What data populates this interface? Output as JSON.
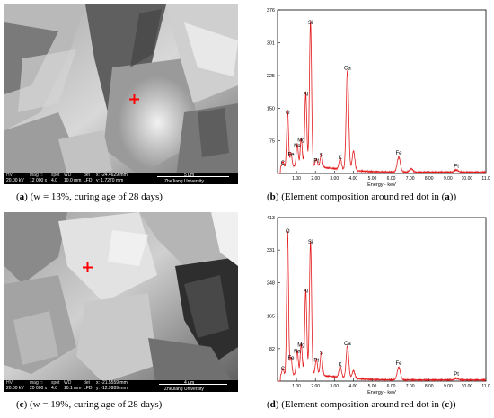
{
  "panels": {
    "a": {
      "caption_letter": "a",
      "caption_text": "(w = 13%, curing age of 28 days)",
      "sem_bar": {
        "hv_label": "HV",
        "hv": "20.00 kV",
        "mag_label": "mag □",
        "mag": "12 000 x",
        "spot_label": "spot",
        "spot": "4.0",
        "wd_label": "WD",
        "wd": "10.0 mm",
        "det_label": "det",
        "det": "LFD",
        "coord1": "x: -24.4629 mm",
        "coord2": "y: 1.7270 mm",
        "scale": "5 μm",
        "institution": "ZheJiang University"
      }
    },
    "b": {
      "caption_letter": "b",
      "caption_pre": "(Element composition around red dot in (",
      "caption_ref": "a",
      "caption_post": "))"
    },
    "c": {
      "caption_letter": "c",
      "caption_text": "(w = 19%, curing age of 28 days)",
      "sem_bar": {
        "hv_label": "HV",
        "hv": "20.00 kV",
        "mag_label": "mag □",
        "mag": "20 000 x",
        "spot_label": "spot",
        "spot": "4.0",
        "wd_label": "WD",
        "wd": "10.1 mm",
        "det_label": "det",
        "det": "LFD",
        "coord1": "x: -21.5559 mm",
        "coord2": "y: -12.9989 mm",
        "scale": "4 μm",
        "institution": "ZheJiang University"
      }
    },
    "d": {
      "caption_letter": "d",
      "caption_pre": "(Element composition around red dot in (",
      "caption_ref": "c",
      "caption_post": "))"
    }
  },
  "colors": {
    "spectrum": "#e31a1c",
    "marker": "#ff0000"
  },
  "chart_data": [
    {
      "type": "line",
      "xlabel": "Energy - keV",
      "xlim": [
        0,
        11.0
      ],
      "ylim": [
        0,
        376
      ],
      "xticks": [
        "1.00",
        "2.00",
        "3.00",
        "4.00",
        "5.00",
        "6.00",
        "7.00",
        "8.00",
        "9.00",
        "10.00",
        "11.0"
      ],
      "yticks": [
        "75",
        "150",
        "225",
        "301",
        "376"
      ],
      "peaks": [
        {
          "x": 0.28,
          "y": 12,
          "label": "C"
        },
        {
          "x": 0.53,
          "y": 128,
          "label": "O"
        },
        {
          "x": 0.71,
          "y": 32,
          "label": "Fe"
        },
        {
          "x": 1.04,
          "y": 52,
          "label": "Na"
        },
        {
          "x": 1.25,
          "y": 65,
          "label": "Mg"
        },
        {
          "x": 1.49,
          "y": 170,
          "label": "Al"
        },
        {
          "x": 1.74,
          "y": 335,
          "label": "Si"
        },
        {
          "x": 2.05,
          "y": 18,
          "label": "Pt"
        },
        {
          "x": 2.31,
          "y": 30,
          "label": "S"
        },
        {
          "x": 3.31,
          "y": 25,
          "label": "K"
        },
        {
          "x": 3.69,
          "y": 230,
          "label": "Ca"
        },
        {
          "x": 4.01,
          "y": 45,
          "label": ""
        },
        {
          "x": 6.4,
          "y": 35,
          "label": "Fe"
        },
        {
          "x": 7.06,
          "y": 8,
          "label": ""
        },
        {
          "x": 9.44,
          "y": 5,
          "label": "Pt"
        }
      ]
    },
    {
      "type": "line",
      "xlabel": "Energy - keV",
      "xlim": [
        0,
        11.0
      ],
      "ylim": [
        0,
        413
      ],
      "xticks": [
        "1.00",
        "2.00",
        "3.00",
        "4.00",
        "5.00",
        "6.00",
        "7.00",
        "8.00",
        "9.00",
        "10.00",
        "11.0"
      ],
      "yticks": [
        "82",
        "165",
        "248",
        "331",
        "413"
      ],
      "peaks": [
        {
          "x": 0.28,
          "y": 18,
          "label": "C"
        },
        {
          "x": 0.53,
          "y": 365,
          "label": "O"
        },
        {
          "x": 0.71,
          "y": 45,
          "label": "Fe"
        },
        {
          "x": 1.04,
          "y": 62,
          "label": "Na"
        },
        {
          "x": 1.25,
          "y": 78,
          "label": "Mg"
        },
        {
          "x": 1.49,
          "y": 215,
          "label": "Al"
        },
        {
          "x": 1.74,
          "y": 338,
          "label": "Si"
        },
        {
          "x": 2.05,
          "y": 40,
          "label": "Pt"
        },
        {
          "x": 2.31,
          "y": 58,
          "label": "S"
        },
        {
          "x": 3.31,
          "y": 28,
          "label": "K"
        },
        {
          "x": 3.69,
          "y": 82,
          "label": "Ca"
        },
        {
          "x": 4.01,
          "y": 20,
          "label": ""
        },
        {
          "x": 6.4,
          "y": 32,
          "label": "Fe"
        },
        {
          "x": 9.44,
          "y": 4,
          "label": "Pt"
        }
      ]
    }
  ]
}
